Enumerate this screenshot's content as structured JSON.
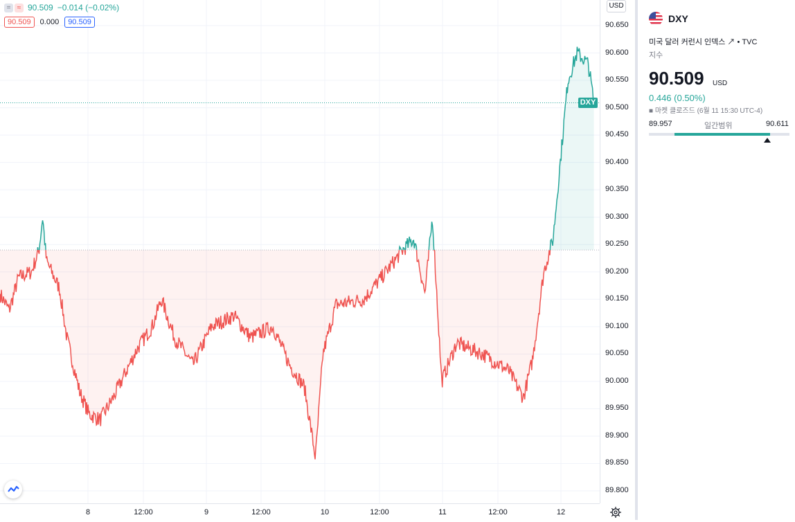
{
  "legend": {
    "price": "90.509",
    "change": "−0.014 (−0.02%)",
    "box_open": "90.509",
    "mid_value": "0.000",
    "box_close": "90.509",
    "icon_a": "=",
    "icon_b": "≈"
  },
  "axis": {
    "currency": "USD",
    "ticks": [
      "90.650",
      "90.600",
      "90.550",
      "90.500",
      "90.450",
      "90.400",
      "90.350",
      "90.300",
      "90.250",
      "90.200",
      "90.150",
      "90.100",
      "90.050",
      "90.000",
      "89.950",
      "89.900",
      "89.850",
      "89.800"
    ],
    "time_labels": [
      "8",
      "12:00",
      "9",
      "12:00",
      "10",
      "12:00",
      "11",
      "12:00",
      "12"
    ]
  },
  "chart_tag": "DXY",
  "colors": {
    "up": "#26a69a",
    "down": "#ef5350",
    "text": "#131722",
    "muted": "#787b86"
  },
  "chart_data": {
    "type": "area",
    "baseline": 90.24,
    "ylim": [
      89.78,
      90.67
    ],
    "last": 90.509,
    "x_labels": [
      "8",
      "12:00",
      "9",
      "12:00",
      "10",
      "12:00",
      "11",
      "12:00",
      "12"
    ],
    "keypoints": [
      [
        0,
        90.16
      ],
      [
        0.5,
        90.13
      ],
      [
        1,
        90.19
      ],
      [
        1.7,
        90.2
      ],
      [
        2.1,
        90.24
      ],
      [
        2.3,
        90.3
      ],
      [
        2.5,
        90.22
      ],
      [
        3.2,
        90.17
      ],
      [
        3.6,
        90.08
      ],
      [
        4.3,
        89.98
      ],
      [
        4.8,
        89.94
      ],
      [
        5.4,
        89.93
      ],
      [
        6.1,
        89.97
      ],
      [
        7.4,
        90.06
      ],
      [
        8.2,
        90.1
      ],
      [
        8.7,
        90.15
      ],
      [
        9.4,
        90.08
      ],
      [
        10.4,
        90.03
      ],
      [
        11.4,
        90.1
      ],
      [
        12.6,
        90.12
      ],
      [
        13.5,
        90.08
      ],
      [
        14.7,
        90.1
      ],
      [
        15.6,
        90.03
      ],
      [
        16.4,
        89.99
      ],
      [
        17.0,
        89.86
      ],
      [
        17.4,
        90.05
      ],
      [
        18.1,
        90.14
      ],
      [
        19.6,
        90.15
      ],
      [
        20.8,
        90.2
      ],
      [
        21.7,
        90.24
      ],
      [
        22.3,
        90.26
      ],
      [
        22.9,
        90.16
      ],
      [
        23.3,
        90.3
      ],
      [
        23.8,
        90.0
      ],
      [
        24.6,
        90.07
      ],
      [
        26.0,
        90.05
      ],
      [
        27.4,
        90.02
      ],
      [
        28.2,
        89.97
      ],
      [
        28.7,
        90.04
      ],
      [
        29.3,
        90.2
      ],
      [
        29.8,
        90.26
      ],
      [
        30.6,
        90.55
      ],
      [
        31.1,
        90.6
      ],
      [
        31.7,
        90.58
      ],
      [
        32.0,
        90.509
      ]
    ]
  },
  "panel": {
    "symbol": "DXY",
    "description": "미국 달러 커런시 인덱스 ↗ • TVC",
    "kind": "지수",
    "price": "90.509",
    "currency": "USD",
    "change": "0.446 (0.50%)",
    "status": "■ 마켓 클로즈드   (6월 11 15:30 UTC-4)",
    "range_low": "89.957",
    "range_high": "90.611",
    "range_label": "일간범위",
    "range_fill_start": 0.18,
    "range_fill_end": 0.86,
    "range_marker": 0.84
  }
}
